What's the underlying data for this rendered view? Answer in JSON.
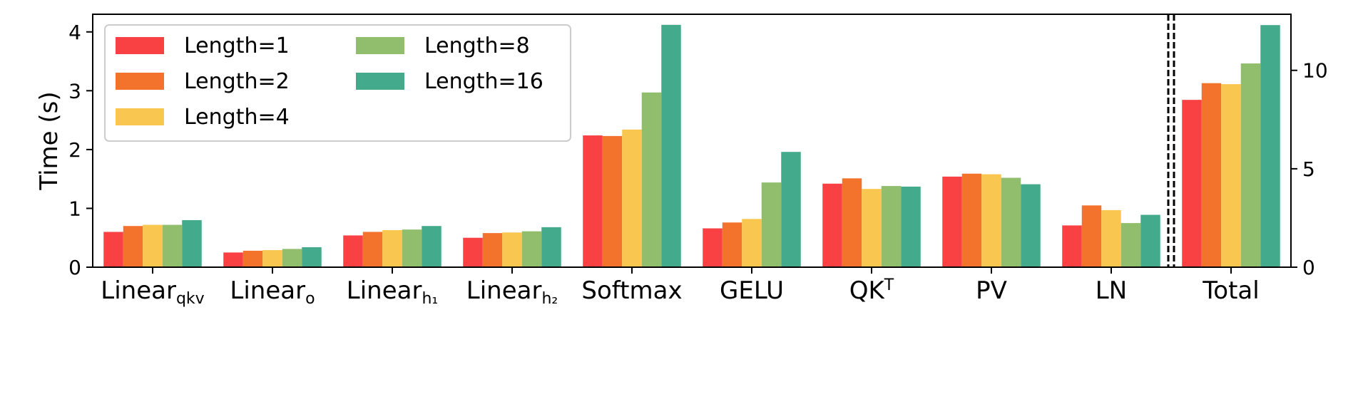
{
  "chart_data": {
    "type": "bar",
    "categories": [
      {
        "base": "Linear",
        "sub": "qkv",
        "sup": ""
      },
      {
        "base": "Linear",
        "sub": "o",
        "sup": ""
      },
      {
        "base": "Linear",
        "sub": "h₁",
        "sup": ""
      },
      {
        "base": "Linear",
        "sub": "h₂",
        "sup": ""
      },
      {
        "base": "Softmax",
        "sub": "",
        "sup": ""
      },
      {
        "base": "GELU",
        "sub": "",
        "sup": ""
      },
      {
        "base": "QK",
        "sub": "",
        "sup": "T"
      },
      {
        "base": "PV",
        "sub": "",
        "sup": ""
      },
      {
        "base": "LN",
        "sub": "",
        "sup": ""
      },
      {
        "base": "Total",
        "sub": "",
        "sup": ""
      }
    ],
    "series": [
      {
        "name": "Length=1",
        "color": "#f94144",
        "values": [
          0.6,
          0.25,
          0.54,
          0.5,
          2.24,
          0.66,
          1.42,
          1.54,
          0.71,
          8.5
        ]
      },
      {
        "name": "Length=2",
        "color": "#f3722c",
        "values": [
          0.7,
          0.28,
          0.6,
          0.58,
          2.23,
          0.76,
          1.51,
          1.59,
          1.05,
          9.35
        ]
      },
      {
        "name": "Length=4",
        "color": "#f9c74f",
        "values": [
          0.72,
          0.29,
          0.63,
          0.59,
          2.34,
          0.82,
          1.33,
          1.58,
          0.97,
          9.3
        ]
      },
      {
        "name": "Length=8",
        "color": "#90be6d",
        "values": [
          0.72,
          0.31,
          0.64,
          0.61,
          2.97,
          1.44,
          1.38,
          1.52,
          0.75,
          10.35
        ]
      },
      {
        "name": "Length=16",
        "color": "#43aa8b",
        "values": [
          0.8,
          0.34,
          0.7,
          0.68,
          4.12,
          1.96,
          1.37,
          1.41,
          0.89,
          12.3
        ]
      }
    ],
    "ylabel": "Time (s)",
    "ylim": [
      0,
      4.3
    ],
    "yticks": [
      0,
      1,
      2,
      3,
      4
    ],
    "y2lim": [
      0,
      12.85
    ],
    "y2ticks": [
      0,
      5,
      10
    ],
    "secondary_axis_categories": [
      "Total"
    ],
    "separator_before": "Total",
    "legend_position": "top-left",
    "legend_columns": 2
  }
}
